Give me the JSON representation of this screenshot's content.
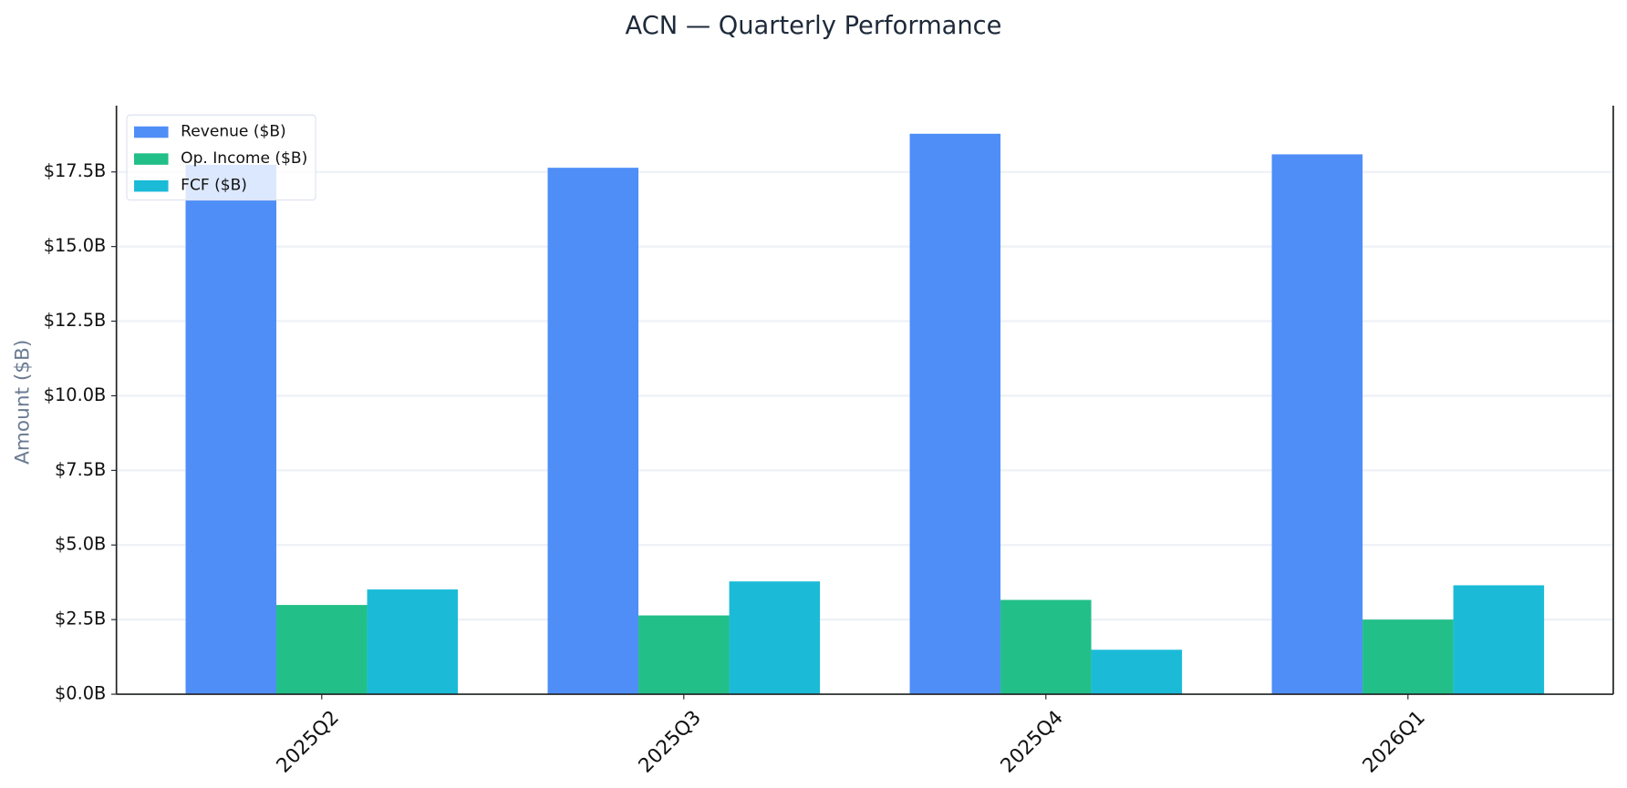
{
  "chart_data": {
    "type": "bar",
    "title": "ACN — Quarterly Performance",
    "y_label": "Amount ($B)",
    "categories": [
      "2025Q2",
      "2025Q3",
      "2025Q4",
      "2026Q1"
    ],
    "series": [
      {
        "name": "Revenue ($B)",
        "color": "#4f8ef7",
        "values": [
          17.74,
          17.64,
          18.78,
          18.09
        ]
      },
      {
        "name": "Op. Income ($B)",
        "color": "#22bf88",
        "values": [
          2.99,
          2.64,
          3.16,
          2.5
        ]
      },
      {
        "name": "FCF ($B)",
        "color": "#1bbbd8",
        "values": [
          3.51,
          3.78,
          1.49,
          3.65
        ]
      }
    ],
    "ylim": [
      0,
      19.72
    ],
    "yticks": [
      {
        "value": 0,
        "label": "$0.0B"
      },
      {
        "value": 2.5,
        "label": "$2.5B"
      },
      {
        "value": 5,
        "label": "$5.0B"
      },
      {
        "value": 7.5,
        "label": "$7.5B"
      },
      {
        "value": 10,
        "label": "$10.0B"
      },
      {
        "value": 12.5,
        "label": "$12.5B"
      },
      {
        "value": 15,
        "label": "$15.0B"
      },
      {
        "value": 17.5,
        "label": "$17.5B"
      }
    ],
    "grid": true,
    "legend": "upper left"
  }
}
